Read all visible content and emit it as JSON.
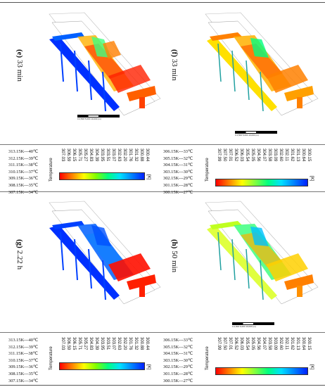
{
  "panels": [
    {
      "letter": "(e)",
      "time": "33 min"
    },
    {
      "letter": "(f)",
      "time": "33 min"
    },
    {
      "letter": "(g)",
      "time": "2.22 h"
    },
    {
      "letter": "(h)",
      "time": "50 min"
    }
  ],
  "scale_bar": {
    "labels": [
      "0",
      "2,500",
      "5,000",
      "10,000 (m)"
    ]
  },
  "legend_title": "Temperature",
  "legend_unit": "[K]",
  "legend_ticks_a": [
    "307.03",
    "306.59",
    "306.15",
    "305.71",
    "305.27",
    "304.83",
    "304.39",
    "303.95",
    "303.51",
    "303.07",
    "302.63",
    "302.20",
    "301.76",
    "301.32",
    "300.88",
    "300.44",
    "300.00"
  ],
  "legend_ticks_b": [
    "307.99",
    "307.50",
    "307.01",
    "306.52",
    "306.03",
    "305.54",
    "305.05",
    "304.56",
    "304.07",
    "303.58",
    "303.09",
    "302.60",
    "302.11",
    "301.62",
    "301.13",
    "300.64",
    "300.15"
  ],
  "conversions_a": [
    "313.15K---40℃",
    "312.15K---39℃",
    "311.15K---38℃",
    "310.15K---37℃",
    "309.15K---36℃",
    "308.15K---35℃",
    "307.15K---34℃"
  ],
  "conversions_b": [
    "306.15K---33℃",
    "305.15K---32℃",
    "304.15K---31℃",
    "303.15K---30℃",
    "302.15K---29℃",
    "301.15K---28℃",
    "300.15K---27℃"
  ],
  "colors": {
    "hot": "#ff2000",
    "warm": "#ffb000",
    "mid": "#90ff30",
    "cool": "#00d0ff",
    "cold": "#0030ff",
    "rule": "#555555"
  }
}
